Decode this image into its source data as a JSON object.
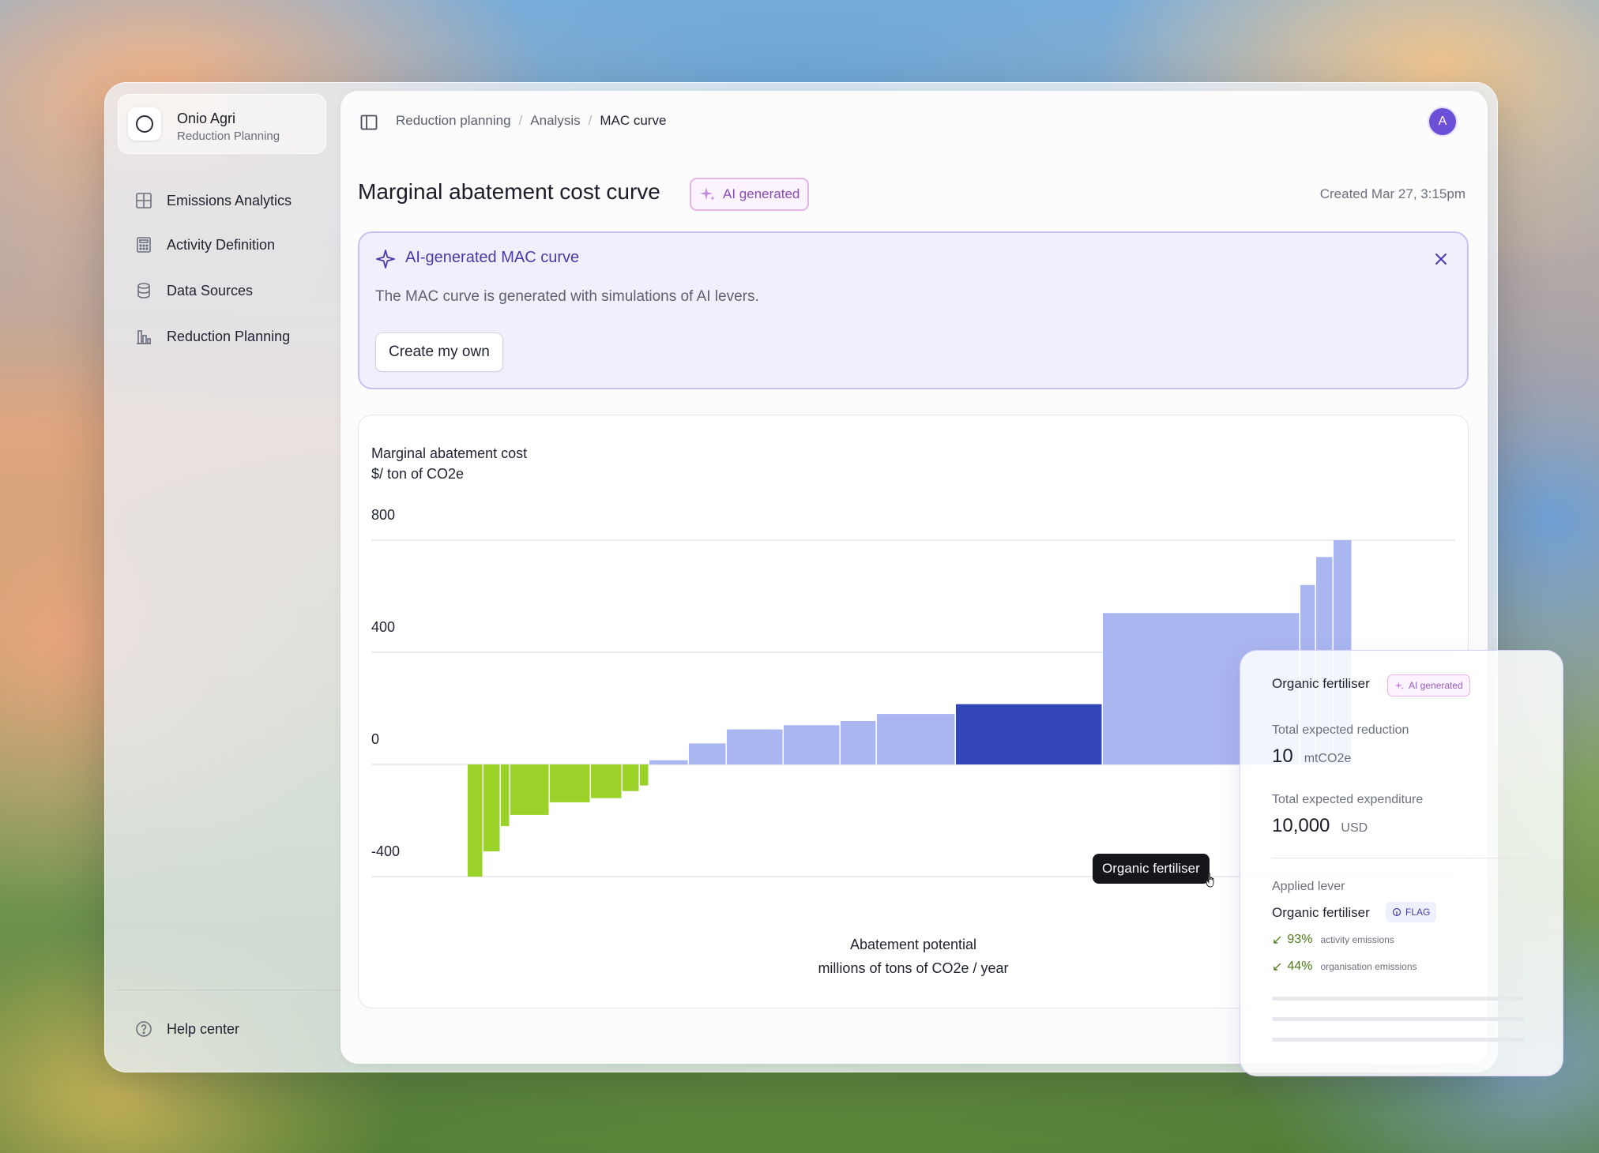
{
  "org": {
    "name": "Onio Agri",
    "subtitle": "Reduction Planning"
  },
  "sidebar": {
    "items": [
      {
        "label": "Emissions Analytics",
        "icon": "grid-icon"
      },
      {
        "label": "Activity Definition",
        "icon": "calculator-icon"
      },
      {
        "label": "Data Sources",
        "icon": "database-icon"
      },
      {
        "label": "Reduction Planning",
        "icon": "bar-chart-icon"
      }
    ],
    "help": "Help center"
  },
  "breadcrumb": [
    "Reduction planning",
    "Analysis",
    "MAC curve"
  ],
  "user": {
    "avatar_initial": "A",
    "avatar_color": "#6b4fd8"
  },
  "page": {
    "title": "Marginal abatement cost curve",
    "ai_badge": "AI generated",
    "created": "Created Mar 27, 3:15pm"
  },
  "banner": {
    "title": "AI-generated MAC curve",
    "text": "The MAC curve is generated with simulations of AI levers.",
    "button": "Create my own"
  },
  "chart_data": {
    "type": "bar",
    "title": "",
    "ylabel": "Marginal abatement cost",
    "yunit": "$/ ton of CO2e",
    "xlabel": "Abatement potential",
    "xunit": "millions of  tons of CO2e / year",
    "yticks": [
      800,
      400,
      0,
      -400
    ],
    "ylim": [
      -400,
      800
    ],
    "bars": [
      {
        "width": 20,
        "value": -400,
        "color": "#9bd22a"
      },
      {
        "width": 22,
        "value": -310,
        "color": "#9bd22a"
      },
      {
        "width": 12,
        "value": -220,
        "color": "#9bd22a"
      },
      {
        "width": 50,
        "value": -180,
        "color": "#9bd22a"
      },
      {
        "width": 52,
        "value": -135,
        "color": "#9bd22a"
      },
      {
        "width": 40,
        "value": -120,
        "color": "#9bd22a"
      },
      {
        "width": 22,
        "value": -95,
        "color": "#9bd22a"
      },
      {
        "width": 12,
        "value": -75,
        "color": "#9bd22a"
      },
      {
        "width": 50,
        "value": 15,
        "color": "#a9b6f0"
      },
      {
        "width": 48,
        "value": 75,
        "color": "#a9b6f0"
      },
      {
        "width": 72,
        "value": 125,
        "color": "#a9b6f0"
      },
      {
        "width": 72,
        "value": 140,
        "color": "#a9b6f0"
      },
      {
        "width": 46,
        "value": 155,
        "color": "#a9b6f0"
      },
      {
        "width": 100,
        "value": 180,
        "color": "#a9b6f0"
      },
      {
        "width": 186,
        "value": 215,
        "color": "#3346b8",
        "name": "Organic fertiliser"
      },
      {
        "width": 250,
        "value": 540,
        "color": "#a9b6f0"
      },
      {
        "width": 20,
        "value": 640,
        "color": "#a9b6f0"
      },
      {
        "width": 22,
        "value": 740,
        "color": "#a9b6f0"
      },
      {
        "width": 24,
        "value": 800,
        "color": "#a9b6f0"
      }
    ]
  },
  "tooltip": "Organic fertiliser",
  "detail": {
    "title": "Organic fertiliser",
    "badge": "AI generated",
    "reduction_label": "Total expected reduction",
    "reduction_value": "10",
    "reduction_unit": "mtCO2e",
    "expenditure_label": "Total expected expenditure",
    "expenditure_value": "10,000",
    "expenditure_unit": "USD",
    "lever_label": "Applied lever",
    "lever_name": "Organic fertiliser",
    "lever_tag": "FLAG",
    "stats": [
      {
        "pct": "93%",
        "label": "activity emissions"
      },
      {
        "pct": "44%",
        "label": "organisation emissions"
      }
    ]
  }
}
